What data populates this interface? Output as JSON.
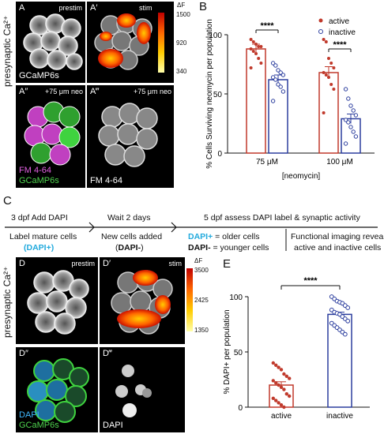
{
  "top": {
    "panel_letter_A": "A",
    "panel_letter_Ap": "A′",
    "panel_letter_App": "A″",
    "panel_letter_Appp": "A‴",
    "panel_letter_B": "B",
    "prestim": "prestim",
    "stim": "stim",
    "neo1": "+75 μm neo",
    "neo2": "+75 μm neo",
    "gcamp": "GCaMP6s",
    "fm": "FM 4-64",
    "gcamp2": "GCaMP6s",
    "fm2": "FM 4-64",
    "side_label": "presynaptic Ca²⁺",
    "cb_top": "1500",
    "cb_mid": "920",
    "cb_bot": "340",
    "cb_unit": "ΔF"
  },
  "middle": {
    "panel_letter_C": "C",
    "step1": "3 dpf Add DAPI",
    "step2": "Wait 2 days",
    "step3": "5 dpf assess DAPI label & synaptic activity",
    "label_mature": "Label mature cells",
    "dapi_plus": "(DAPI+)",
    "new_cells": "New cells added",
    "dapi_minus_open": "(",
    "dapi_minus": "DAPI-",
    "dapi_minus_close": ")",
    "older_key": "DAPI+",
    "older_rest": " = older cells",
    "younger_key": "DAPI-",
    "younger_rest": " = younger cells",
    "func1": "Functional imaging reveals",
    "func2": "active and inactive cells"
  },
  "bottom": {
    "panel_letter_D": "D",
    "panel_letter_Dp": "D′",
    "panel_letter_Dpp": "D″",
    "panel_letter_Dppp": "D‴",
    "panel_letter_E": "E",
    "prestim": "prestim",
    "stim": "stim",
    "dapi": "DAPI",
    "gcamp": "GCaMP6s",
    "dapi2": "DAPI",
    "side_label": "presynaptic Ca²⁺",
    "cb_top": "3500",
    "cb_mid": "2425",
    "cb_bot": "1350",
    "cb_unit": "ΔF"
  },
  "chart_data": [
    {
      "type": "bar",
      "panel": "B",
      "ylabel": "% Cells Surviving neomycin per population",
      "xlabel": "[neomycin]",
      "categories": [
        "75 μM",
        "100 μM"
      ],
      "ylim": [
        0,
        100
      ],
      "yticks": [
        0,
        50,
        100
      ],
      "legend": [
        "active",
        "inactive"
      ],
      "legend_position": "top-right",
      "significance": "****",
      "series": [
        {
          "name": "active",
          "color": "#c0392b",
          "values": [
            88,
            68
          ],
          "sem": [
            4,
            5
          ],
          "points": [
            [
              96,
              94,
              92,
              90,
              90,
              88,
              86,
              84,
              80,
              76,
              72
            ],
            [
              96,
              94,
              80,
              76,
              72,
              68,
              66,
              64,
              58,
              54,
              34
            ]
          ]
        },
        {
          "name": "inactive",
          "color": "#2c3e9e",
          "values": [
            62,
            29
          ],
          "sem": [
            4,
            4
          ],
          "points": [
            [
              76,
              74,
              70,
              68,
              66,
              64,
              62,
              58,
              56,
              52,
              44
            ],
            [
              54,
              46,
              40,
              36,
              32,
              28,
              26,
              22,
              18,
              14,
              8
            ]
          ]
        }
      ]
    },
    {
      "type": "bar",
      "panel": "E",
      "ylabel": "% DAPI+ per population",
      "categories": [
        "active",
        "inactive"
      ],
      "ylim": [
        0,
        100
      ],
      "yticks": [
        0,
        50,
        100
      ],
      "significance": "****",
      "values": [
        20,
        84
      ],
      "sem": [
        3,
        2
      ],
      "colors": [
        "#c0392b",
        "#2c3e9e"
      ],
      "points": [
        [
          40,
          38,
          36,
          34,
          30,
          28,
          26,
          24,
          22,
          20,
          18,
          16,
          12,
          10,
          8,
          6,
          4,
          2,
          0
        ],
        [
          100,
          98,
          96,
          95,
          94,
          92,
          90,
          88,
          86,
          85,
          84,
          82,
          80,
          78,
          76,
          74,
          72,
          70,
          68,
          66
        ]
      ]
    }
  ]
}
